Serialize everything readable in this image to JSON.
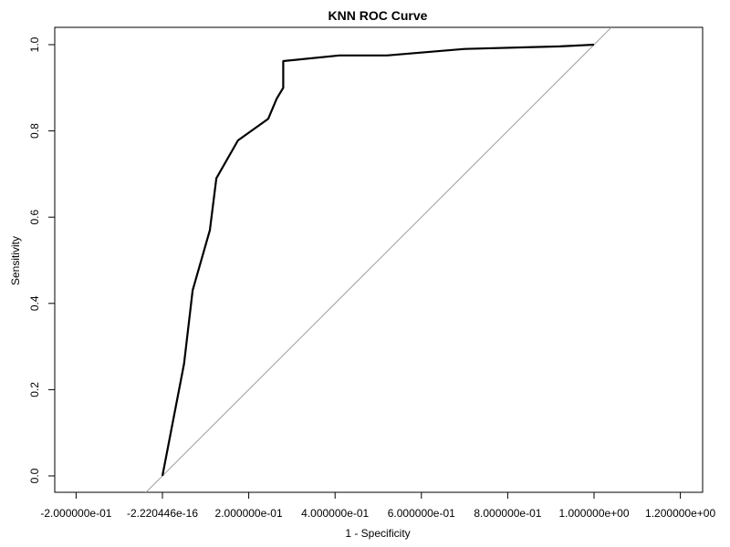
{
  "chart_data": {
    "type": "line",
    "title": "KNN ROC Curve",
    "xlabel": "1 - Specificity",
    "ylabel": "Sensitivity",
    "xlim": [
      -0.2,
      1.2
    ],
    "ylim": [
      0.0,
      1.0
    ],
    "x_ticks": [
      {
        "value": -0.2,
        "label": "-2.000000e-01"
      },
      {
        "value": 0.0,
        "label": "-2.220446e-16"
      },
      {
        "value": 0.2,
        "label": "2.000000e-01"
      },
      {
        "value": 0.4,
        "label": "4.000000e-01"
      },
      {
        "value": 0.6,
        "label": "6.000000e-01"
      },
      {
        "value": 0.8,
        "label": "8.000000e-01"
      },
      {
        "value": 1.0,
        "label": "1.000000e+00"
      },
      {
        "value": 1.2,
        "label": "1.200000e+00"
      }
    ],
    "y_ticks": [
      {
        "value": 0.0,
        "label": "0.0"
      },
      {
        "value": 0.2,
        "label": "0.2"
      },
      {
        "value": 0.4,
        "label": "0.4"
      },
      {
        "value": 0.6,
        "label": "0.6"
      },
      {
        "value": 0.8,
        "label": "0.8"
      },
      {
        "value": 1.0,
        "label": "1.0"
      }
    ],
    "grid": false,
    "series": [
      {
        "color": "#000000",
        "points": [
          {
            "x": 0.0,
            "y": 0.0
          },
          {
            "x": 0.05,
            "y": 0.26
          },
          {
            "x": 0.07,
            "y": 0.43
          },
          {
            "x": 0.11,
            "y": 0.57
          },
          {
            "x": 0.125,
            "y": 0.69
          },
          {
            "x": 0.175,
            "y": 0.778
          },
          {
            "x": 0.245,
            "y": 0.828
          },
          {
            "x": 0.265,
            "y": 0.875
          },
          {
            "x": 0.28,
            "y": 0.9
          },
          {
            "x": 0.28,
            "y": 0.962
          },
          {
            "x": 0.41,
            "y": 0.975
          },
          {
            "x": 0.52,
            "y": 0.975
          },
          {
            "x": 0.7,
            "y": 0.99
          },
          {
            "x": 0.92,
            "y": 0.996
          },
          {
            "x": 1.0,
            "y": 1.0
          }
        ]
      }
    ],
    "reference_line": {
      "type": "diagonal",
      "color": "#9e9e9e",
      "points": [
        {
          "x": -0.04,
          "y": -0.04
        },
        {
          "x": 1.04,
          "y": 1.04
        }
      ]
    }
  }
}
